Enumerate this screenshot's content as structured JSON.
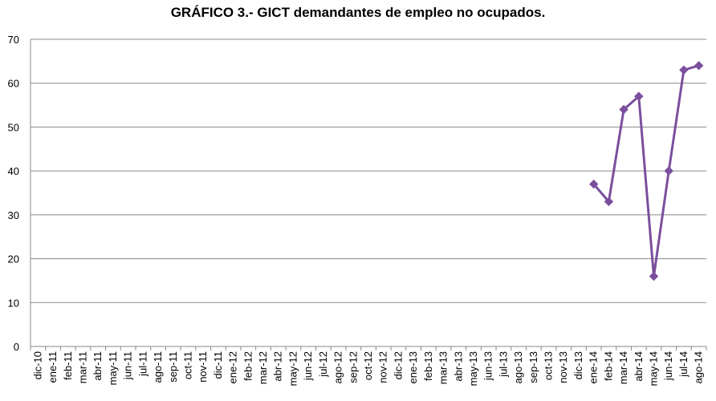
{
  "chart_data": {
    "type": "line",
    "title": "GRÁFICO 3.- GICT demandantes de empleo no ocupados.",
    "xlabel": "",
    "ylabel": "",
    "ylim": [
      0,
      70
    ],
    "yticks": [
      "0",
      "10",
      "20",
      "30",
      "40",
      "50",
      "60",
      "70"
    ],
    "grid": "horizontal",
    "legend": "none",
    "categories": [
      "dic-10",
      "ene-11",
      "feb-11",
      "mar-11",
      "abr-11",
      "may-11",
      "jun-11",
      "jul-11",
      "ago-11",
      "sep-11",
      "oct-11",
      "nov-11",
      "dic-11",
      "ene-12",
      "feb-12",
      "mar-12",
      "abr-12",
      "may-12",
      "jun-12",
      "jul-12",
      "ago-12",
      "sep-12",
      "oct-12",
      "nov-12",
      "dic-12",
      "ene-13",
      "feb-13",
      "mar-13",
      "abr-13",
      "may-13",
      "jun-13",
      "jul-13",
      "ago-13",
      "sep-13",
      "oct-13",
      "nov-13",
      "dic-13",
      "ene-14",
      "feb-14",
      "mar-14",
      "abr-14",
      "may-14",
      "jun-14",
      "jul-14",
      "ago-14"
    ],
    "series": [
      {
        "values": [
          null,
          null,
          null,
          null,
          null,
          null,
          null,
          null,
          null,
          null,
          null,
          null,
          null,
          null,
          null,
          null,
          null,
          null,
          null,
          null,
          null,
          null,
          null,
          null,
          null,
          null,
          null,
          null,
          null,
          null,
          null,
          null,
          null,
          null,
          null,
          null,
          null,
          37,
          33,
          54,
          57,
          16,
          40,
          63,
          64
        ]
      }
    ],
    "colors": {
      "line": "#7b4f9d",
      "grid": "#888888",
      "axis": "#888888"
    }
  }
}
